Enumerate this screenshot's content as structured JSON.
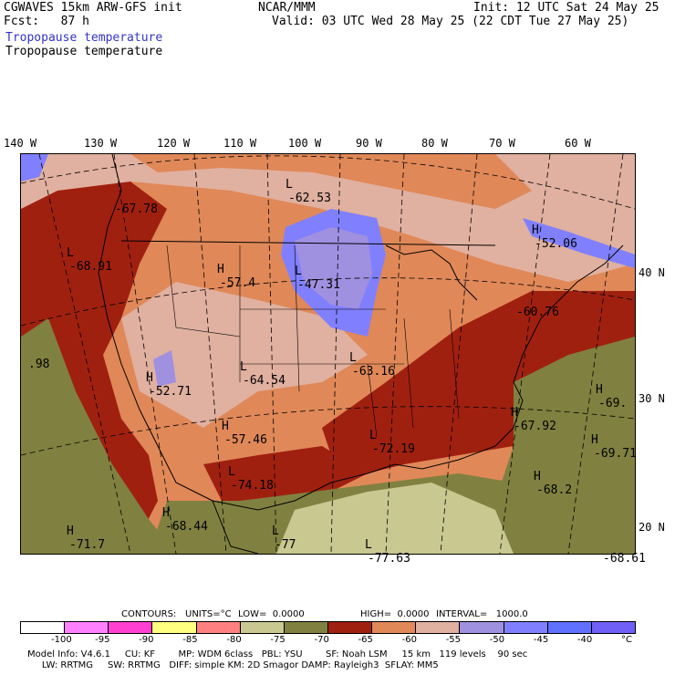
{
  "header": {
    "model": "CGWAVES 15km ARW-GFS init",
    "org": "NCAR/MMM",
    "init": "Init: 12 UTC Sat 24 May 25",
    "fcst": "Fcst:   87 h",
    "valid": "Valid: 03 UTC Wed 28 May 25 (22 CDT Tue 27 May 25)",
    "field_title_1": "Tropopause temperature",
    "field_title_2": "Tropopause temperature"
  },
  "longitudes": [
    "140 W",
    "130 W",
    "120 W",
    "110 W",
    "100 W",
    "90 W",
    "80 W",
    "70 W",
    "60 W"
  ],
  "latitudes": [
    "40 N",
    "30 N",
    "20 N"
  ],
  "map_labels": [
    {
      "letter": "L",
      "value": "-62.53"
    },
    {
      "letter": "H",
      "value": "-52.06"
    },
    {
      "letter": "L",
      "value": "-68.91"
    },
    {
      "letter": "H",
      "value": "-57.4"
    },
    {
      "letter": "L",
      "value": "-47.31"
    },
    {
      "letter": "L",
      "value": "-63.16"
    },
    {
      "letter": "H",
      "value": "-52.71"
    },
    {
      "letter": "L",
      "value": "-64.54"
    },
    {
      "letter": "H",
      "value": "-57.46"
    },
    {
      "letter": "L",
      "value": "-72.19"
    },
    {
      "letter": "H",
      "value": "-67.92"
    },
    {
      "letter": "L",
      "value": "-74.18"
    },
    {
      "letter": "H",
      "value": "-68.2"
    },
    {
      "letter": "H",
      "value": "-68.44"
    },
    {
      "letter": "H",
      "value": "-71.7"
    },
    {
      "letter": "L",
      "value": "-77"
    },
    {
      "letter": "L",
      "value": "-77.63"
    },
    {
      "letter": "H",
      "value": "-69.71"
    },
    {
      "letter": "H",
      "value": "-69."
    },
    {
      "letter": "",
      "value": "-67.78"
    },
    {
      "letter": "",
      "value": "-60.76"
    },
    {
      "letter": "",
      "value": ".98"
    },
    {
      "letter": "",
      "value": "-68.61"
    }
  ],
  "contours": {
    "label": "CONTOURS:",
    "units": "UNITS=°C",
    "low": "LOW=  0.0000",
    "high": "HIGH=  0.0000",
    "interval": "INTERVAL=   1000.0"
  },
  "colorbar": {
    "colors": [
      "#ffffff",
      "#ff80ff",
      "#ff40d0",
      "#ffff80",
      "#ff8080",
      "#c8c890",
      "#808040",
      "#a02010",
      "#e08858",
      "#e0b0a0",
      "#a090e0",
      "#8080ff",
      "#6070ff",
      "#7060f8"
    ],
    "ticks": [
      "-100",
      "-95",
      "-90",
      "-85",
      "-80",
      "-75",
      "-70",
      "-65",
      "-60",
      "-55",
      "-50",
      "-45",
      "-40",
      "°C"
    ]
  },
  "footer": {
    "line1": "Model Info: V4.6.1     CU: KF        MP: WDM 6class   PBL: YSU        SF: Noah LSM     15 km   119 levels    90 sec",
    "line2": "     LW: RRTMG     SW: RRTMG   DIFF: simple KM: 2D Smagor DAMP: Rayleigh3  SFLAY: MM5"
  }
}
